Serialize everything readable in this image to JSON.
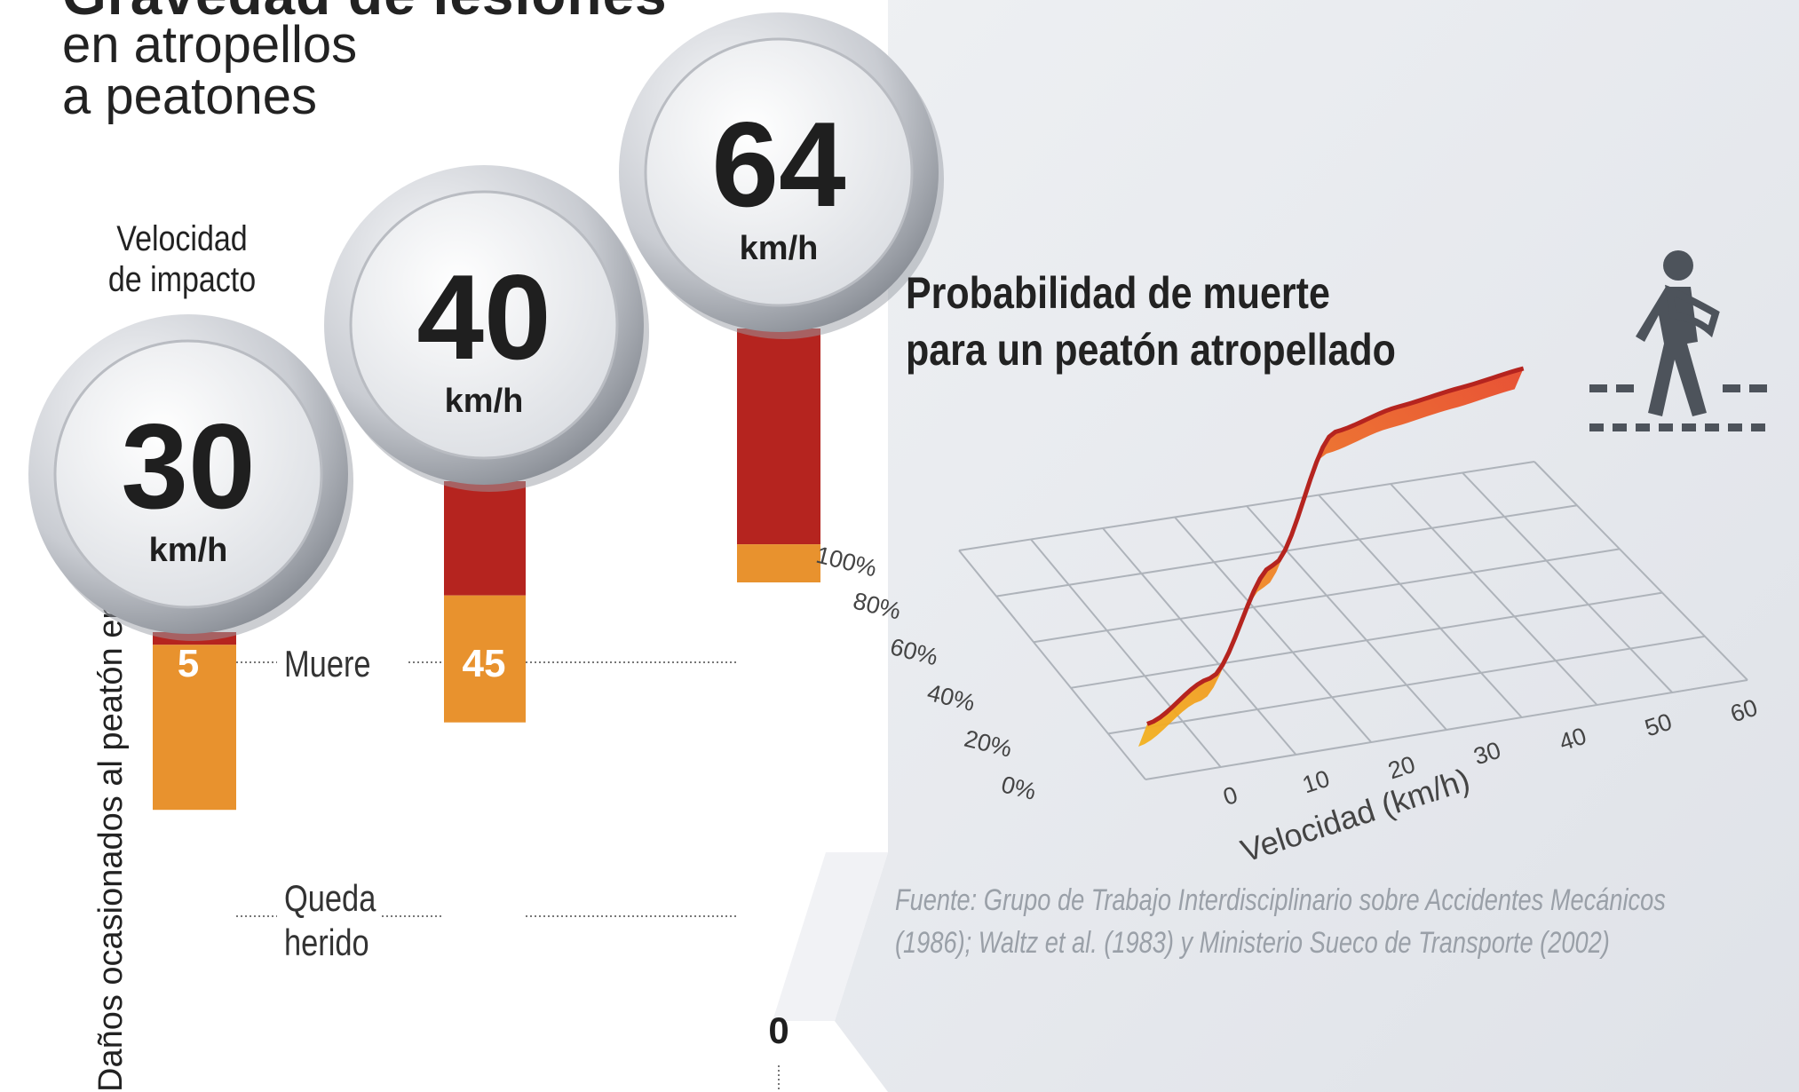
{
  "header": {
    "title_partial": "Gravedad de lesiones",
    "title_line1": "en atropellos",
    "title_line2": "a peatones"
  },
  "left_panel": {
    "speed_caption_line1": "Velocidad",
    "speed_caption_line2": "de impacto",
    "side_label": "Daños ocasionados al peatón en %",
    "category_labels": {
      "dies": "Muere",
      "injured_line1": "Queda",
      "injured_line2": "herido"
    },
    "unit": "km/h",
    "zero_label": "0"
  },
  "right_panel": {
    "title_line1": "Probabilidad de muerte",
    "title_line2": "para un peatón atropellado",
    "source_line1": "Fuente: Grupo de Trabajo Interdisciplinario sobre Accidentes Mecánicos",
    "source_line2": "(1986); Waltz et al. (1983) y Ministerio Sueco de Transporte (2002)",
    "pedestrian_icon": "pedestrian-crossing-icon"
  },
  "chart_data": [
    {
      "type": "bar",
      "stacked": true,
      "categories": [
        "30 km/h",
        "40 km/h",
        "64 km/h"
      ],
      "speeds": [
        30,
        40,
        64
      ],
      "series": [
        {
          "name": "Muere",
          "values": [
            5,
            45,
            85
          ],
          "color": "#b5241f"
        },
        {
          "name": "Queda herido",
          "values": [
            65,
            50,
            15
          ],
          "color": "#e8922e"
        }
      ],
      "ylabel": "Daños ocasionados al peatón en %"
    },
    {
      "type": "line",
      "title": "Probabilidad de muerte para un peatón atropellado",
      "xlabel": "Velocidad (km/h)",
      "x": [
        0,
        10,
        20,
        30,
        40,
        50,
        60
      ],
      "y": [
        0.12,
        0.22,
        0.55,
        0.95,
        0.98,
        0.99,
        1.0
      ],
      "xticks": [
        "0",
        "10",
        "20",
        "30",
        "40",
        "50",
        "60"
      ],
      "yticks": [
        "0%",
        "20%",
        "40%",
        "60%",
        "80%",
        "100%"
      ],
      "xlim": [
        0,
        60
      ],
      "ylim": [
        0,
        1
      ],
      "grid": true,
      "colors": [
        "#e84a2c",
        "#f3b21f"
      ]
    }
  ]
}
